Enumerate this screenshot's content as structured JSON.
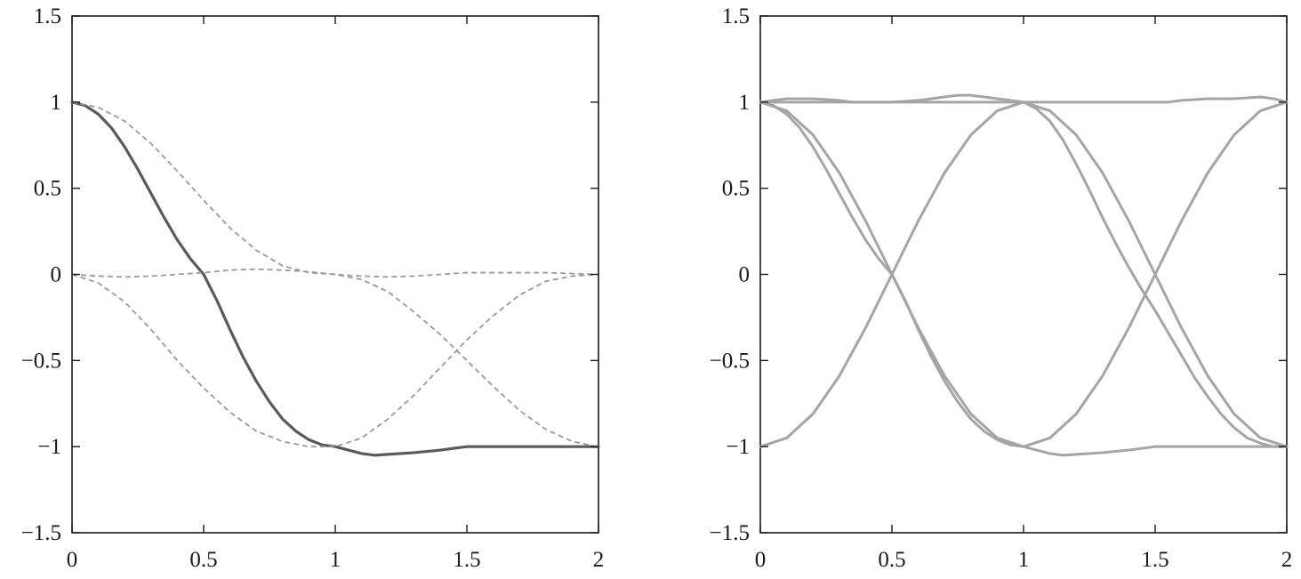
{
  "chart_data": [
    {
      "type": "line",
      "title": "",
      "xlabel": "",
      "ylabel": "",
      "xlim": [
        0,
        2
      ],
      "ylim": [
        -1.5,
        1.5
      ],
      "xticks": [
        0,
        0.5,
        1,
        1.5,
        2
      ],
      "xtick_labels": [
        "0",
        "0.5",
        "1",
        "1.5",
        "2"
      ],
      "yticks": [
        1.5,
        1,
        0.5,
        0,
        -0.5,
        -1,
        -1.5
      ],
      "ytick_labels": [
        "1.5",
        "1",
        "0.5",
        "0",
        "−0.5",
        "−1",
        "−1.5"
      ],
      "grid": false,
      "series": [
        {
          "style": "solid-thick",
          "color": "#5a5a5a",
          "x": [
            0,
            0.05,
            0.1,
            0.15,
            0.2,
            0.25,
            0.3,
            0.35,
            0.4,
            0.45,
            0.5,
            0.55,
            0.6,
            0.65,
            0.7,
            0.75,
            0.8,
            0.85,
            0.9,
            0.95,
            1.0,
            1.05,
            1.1,
            1.15,
            1.2,
            1.3,
            1.4,
            1.45,
            1.5,
            1.55,
            1.6,
            1.7,
            1.8,
            1.9,
            2.0
          ],
          "y": [
            1.0,
            0.98,
            0.93,
            0.85,
            0.74,
            0.61,
            0.47,
            0.33,
            0.2,
            0.09,
            0.0,
            -0.15,
            -0.32,
            -0.48,
            -0.62,
            -0.74,
            -0.84,
            -0.91,
            -0.96,
            -0.99,
            -1.0,
            -1.02,
            -1.04,
            -1.05,
            -1.045,
            -1.035,
            -1.02,
            -1.01,
            -1.0,
            -1.0,
            -1.0,
            -1.0,
            -1.0,
            -1.0,
            -1.0
          ]
        },
        {
          "style": "dashed",
          "color": "#9a9a9a",
          "x": [
            0,
            0.1,
            0.2,
            0.3,
            0.4,
            0.5,
            0.6,
            0.7,
            0.8,
            0.9,
            1.0,
            1.1,
            1.2,
            1.3,
            1.4,
            1.5,
            1.6,
            1.7,
            1.8,
            1.9,
            2.0
          ],
          "y": [
            1.0,
            0.97,
            0.89,
            0.76,
            0.6,
            0.43,
            0.27,
            0.14,
            0.05,
            0.01,
            0.0,
            -0.03,
            -0.1,
            -0.22,
            -0.35,
            -0.5,
            -0.65,
            -0.79,
            -0.9,
            -0.97,
            -1.0
          ]
        },
        {
          "style": "dashed",
          "color": "#9a9a9a",
          "x": [
            0,
            0.1,
            0.2,
            0.3,
            0.4,
            0.5,
            0.6,
            0.7,
            0.8,
            0.9,
            1.0,
            1.1,
            1.2,
            1.3,
            1.4,
            1.5,
            1.6,
            1.7,
            1.8,
            1.9,
            2.0
          ],
          "y": [
            0.0,
            -0.05,
            -0.16,
            -0.32,
            -0.5,
            -0.66,
            -0.8,
            -0.91,
            -0.97,
            -1.0,
            -1.0,
            -0.95,
            -0.84,
            -0.7,
            -0.54,
            -0.38,
            -0.24,
            -0.12,
            -0.04,
            -0.01,
            0.0
          ]
        },
        {
          "style": "dashed",
          "color": "#9a9a9a",
          "x": [
            0,
            0.1,
            0.2,
            0.3,
            0.4,
            0.5,
            0.6,
            0.7,
            0.8,
            0.9,
            1.0,
            1.1,
            1.2,
            1.3,
            1.4,
            1.5,
            1.6,
            1.7,
            1.8,
            1.9,
            2.0
          ],
          "y": [
            0.0,
            -0.01,
            -0.015,
            -0.01,
            0.0,
            0.01,
            0.025,
            0.03,
            0.025,
            0.015,
            0.0,
            -0.01,
            -0.015,
            -0.01,
            0.0,
            0.01,
            0.01,
            0.01,
            0.01,
            0.005,
            0.0
          ]
        }
      ]
    },
    {
      "type": "line",
      "title": "",
      "xlabel": "",
      "ylabel": "",
      "xlim": [
        0,
        2
      ],
      "ylim": [
        -1.5,
        1.5
      ],
      "xticks": [
        0,
        0.5,
        1,
        1.5,
        2
      ],
      "xtick_labels": [
        "0",
        "0.5",
        "1",
        "1.5",
        "2"
      ],
      "yticks": [
        1.5,
        1,
        0.5,
        0,
        -0.5,
        -1,
        -1.5
      ],
      "ytick_labels": [
        "1.5",
        "1",
        "0.5",
        "0",
        "−0.5",
        "−1",
        "−1.5"
      ],
      "grid": false,
      "series": [
        {
          "style": "solid",
          "color": "#a5a5a5",
          "x": [
            0,
            0.05,
            0.1,
            0.15,
            0.2,
            0.25,
            0.3,
            0.35,
            0.4,
            0.45,
            0.5,
            0.55,
            0.6,
            0.65,
            0.7,
            0.75,
            0.8,
            0.85,
            0.9,
            0.95,
            1.0,
            1.05,
            1.1,
            1.15,
            1.2,
            1.3,
            1.4,
            1.45,
            1.5,
            1.55,
            1.6,
            1.7,
            1.8,
            1.9,
            2.0
          ],
          "y": [
            1.0,
            0.98,
            0.93,
            0.85,
            0.74,
            0.61,
            0.47,
            0.33,
            0.2,
            0.09,
            0.0,
            -0.15,
            -0.32,
            -0.48,
            -0.62,
            -0.74,
            -0.84,
            -0.91,
            -0.96,
            -0.99,
            -1.0,
            -1.02,
            -1.04,
            -1.05,
            -1.045,
            -1.035,
            -1.02,
            -1.01,
            -1.0,
            -1.0,
            -1.0,
            -1.0,
            -1.0,
            -1.0,
            -1.0
          ]
        },
        {
          "style": "solid",
          "color": "#a5a5a5",
          "x": [
            0,
            0.05,
            0.1,
            0.2,
            0.3,
            0.35,
            0.4,
            0.5,
            0.6,
            0.65,
            0.7,
            0.75,
            0.8,
            0.85,
            0.9,
            0.95,
            1.0,
            1.05,
            1.1,
            1.15,
            1.2,
            1.25,
            1.3,
            1.35,
            1.4,
            1.45,
            1.5,
            1.55,
            1.6,
            1.65,
            1.7,
            1.75,
            1.8,
            1.85,
            1.9,
            1.95,
            2.0
          ],
          "y": [
            1.0,
            1.01,
            1.02,
            1.02,
            1.01,
            1.0,
            1.0,
            1.0,
            1.01,
            1.02,
            1.03,
            1.04,
            1.04,
            1.03,
            1.02,
            1.01,
            1.0,
            0.96,
            0.89,
            0.78,
            0.64,
            0.49,
            0.33,
            0.18,
            0.04,
            -0.09,
            -0.21,
            -0.34,
            -0.47,
            -0.6,
            -0.71,
            -0.81,
            -0.89,
            -0.95,
            -0.98,
            -1.0,
            -1.0
          ]
        },
        {
          "style": "solid",
          "color": "#a5a5a5",
          "x": [
            0,
            0.1,
            0.2,
            0.3,
            0.4,
            0.5,
            0.6,
            0.7,
            0.8,
            0.9,
            1.0,
            1.1,
            1.2,
            1.3,
            1.4,
            1.5,
            1.6,
            1.7,
            1.8,
            1.9,
            2.0
          ],
          "y": [
            -1.0,
            -0.95,
            -0.81,
            -0.59,
            -0.31,
            0.0,
            0.31,
            0.59,
            0.81,
            0.95,
            1.0,
            0.95,
            0.81,
            0.59,
            0.31,
            0.0,
            -0.31,
            -0.59,
            -0.81,
            -0.95,
            -1.0
          ]
        },
        {
          "style": "solid",
          "color": "#a5a5a5",
          "x": [
            0,
            0.1,
            0.2,
            0.3,
            0.4,
            0.5,
            0.6,
            0.7,
            0.8,
            0.9,
            1.0,
            1.1,
            1.2,
            1.3,
            1.4,
            1.5,
            1.6,
            1.7,
            1.8,
            1.9,
            2.0
          ],
          "y": [
            1.0,
            0.95,
            0.81,
            0.59,
            0.31,
            0.0,
            -0.31,
            -0.59,
            -0.81,
            -0.95,
            -1.0,
            -0.95,
            -0.81,
            -0.59,
            -0.31,
            0.0,
            0.31,
            0.59,
            0.81,
            0.95,
            1.0
          ]
        },
        {
          "style": "solid",
          "color": "#a5a5a5",
          "x": [
            0,
            0.1,
            0.2,
            0.4,
            0.6,
            0.8,
            1.0,
            1.2,
            1.4,
            1.55,
            1.6,
            1.7,
            1.8,
            1.9,
            1.95,
            2.0
          ],
          "y": [
            1.0,
            1.0,
            1.0,
            1.0,
            1.0,
            1.0,
            1.0,
            1.0,
            1.0,
            1.0,
            1.01,
            1.02,
            1.02,
            1.03,
            1.02,
            1.0
          ]
        }
      ]
    }
  ]
}
